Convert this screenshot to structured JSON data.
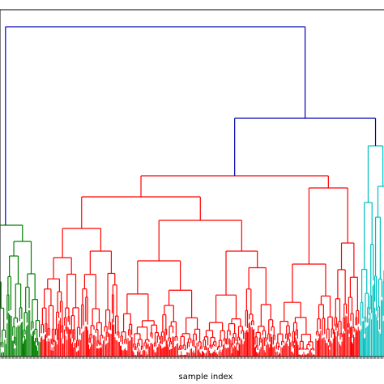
{
  "chart_data": {
    "type": "dendrogram",
    "title": "",
    "xlabel": "sample index",
    "ylabel": "",
    "grid": false,
    "clusters": [
      {
        "color": "#008000",
        "approx_leaf_share": 0.11
      },
      {
        "color": "#ff0000",
        "approx_leaf_share": 0.83
      },
      {
        "color": "#00bfbf",
        "approx_leaf_share": 0.06
      }
    ],
    "link_color_above_threshold": "#0000b3"
  }
}
